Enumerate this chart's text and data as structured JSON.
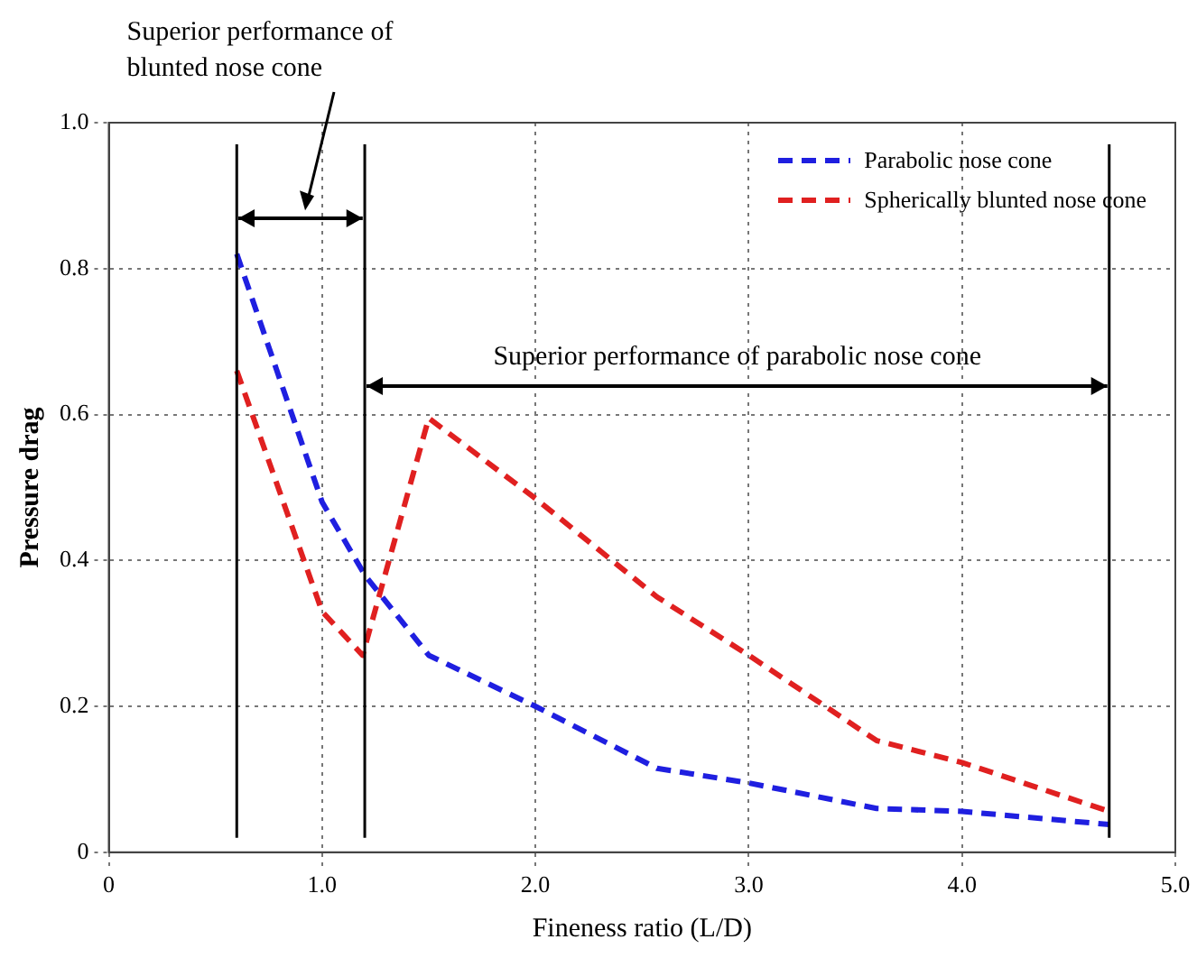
{
  "chart_data": {
    "type": "line",
    "xlabel": "Fineness ratio (L/D)",
    "ylabel": "Pressure drag",
    "xlim": [
      0,
      5
    ],
    "xticks": [
      0,
      {
        "value": 1,
        "label": "1.0"
      },
      {
        "value": 2,
        "label": "2.0"
      },
      {
        "value": 3,
        "label": "3.0"
      },
      {
        "value": 4,
        "label": "4.0"
      },
      {
        "value": 5,
        "label": "5.0"
      }
    ],
    "ylim": [
      0,
      1
    ],
    "yticks": [
      0,
      0.2,
      0.4,
      0.6,
      0.8,
      {
        "value": 1,
        "label": "1.0"
      }
    ],
    "series": [
      {
        "name": "Parabolic nose cone",
        "color": "#1f1fe0",
        "x": [
          0.6,
          1.0,
          1.2,
          1.5,
          2.0,
          2.57,
          3.0,
          3.6,
          4.0,
          4.69
        ],
        "values": [
          0.82,
          0.48,
          0.38,
          0.27,
          0.2,
          0.115,
          0.095,
          0.06,
          0.056,
          0.038
        ]
      },
      {
        "name": "Spherically blunted nose cone",
        "color": "#e02020",
        "x": [
          0.6,
          1.0,
          1.19,
          1.5,
          2.0,
          2.57,
          3.0,
          3.6,
          4.0,
          4.69
        ],
        "values": [
          0.66,
          0.33,
          0.27,
          0.595,
          0.485,
          0.35,
          0.27,
          0.153,
          0.123,
          0.056
        ]
      }
    ],
    "line_style": "dashed",
    "marker": "none",
    "grid": true,
    "legend": "top right",
    "ref_lines": [
      {
        "axis": "x",
        "value": 0.6,
        "color": "#000000"
      },
      {
        "axis": "x",
        "value": 1.2,
        "color": "#000000"
      },
      {
        "axis": "x",
        "value": 4.69,
        "color": "#000000"
      }
    ],
    "annotations": [
      "Superior performance of blunted nose cone",
      "Superior performance of parabolic nose cone"
    ]
  }
}
